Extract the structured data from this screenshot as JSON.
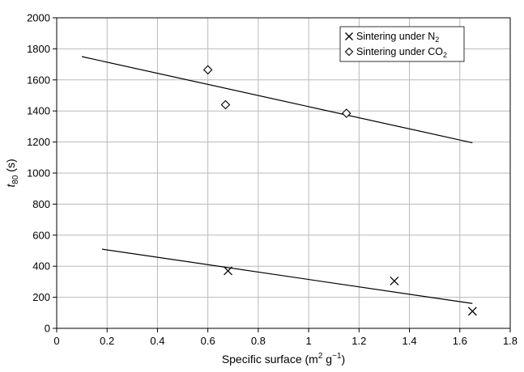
{
  "chart_data": {
    "type": "scatter",
    "title": "",
    "xlabel": {
      "text": "Specific surface (m",
      "sup1": "2",
      "mid": " g",
      "sup2": "−1",
      "end": ")"
    },
    "ylabel": {
      "main": "t",
      "sub": "80",
      "rest": " (s)"
    },
    "xlim": [
      0,
      1.8
    ],
    "ylim": [
      0,
      2000
    ],
    "xticks": [
      {
        "value": 0,
        "label": "0"
      },
      {
        "value": 0.2,
        "label": "0.2"
      },
      {
        "value": 0.4,
        "label": "0.4"
      },
      {
        "value": 0.6,
        "label": "0.6"
      },
      {
        "value": 0.8,
        "label": "0.8"
      },
      {
        "value": 1.0,
        "label": "1"
      },
      {
        "value": 1.2,
        "label": "1.2"
      },
      {
        "value": 1.4,
        "label": "1.4"
      },
      {
        "value": 1.6,
        "label": "1.6"
      },
      {
        "value": 1.8,
        "label": "1.8"
      }
    ],
    "yticks": [
      {
        "value": 0,
        "label": "0"
      },
      {
        "value": 200,
        "label": "200"
      },
      {
        "value": 400,
        "label": "400"
      },
      {
        "value": 600,
        "label": "600"
      },
      {
        "value": 800,
        "label": "800"
      },
      {
        "value": 1000,
        "label": "1000"
      },
      {
        "value": 1200,
        "label": "1200"
      },
      {
        "value": 1400,
        "label": "1400"
      },
      {
        "value": 1600,
        "label": "1600"
      },
      {
        "value": 1800,
        "label": "1800"
      },
      {
        "value": 2000,
        "label": "2000"
      }
    ],
    "grid": true,
    "legend_position": "top-right",
    "series": [
      {
        "id": "n2",
        "legend_main": "Sintering under N",
        "legend_sub": "2",
        "marker": "cross",
        "points": [
          {
            "x": 0.68,
            "y": 370
          },
          {
            "x": 1.34,
            "y": 305
          },
          {
            "x": 1.65,
            "y": 110
          }
        ],
        "trendline": [
          {
            "x": 0.18,
            "y": 510
          },
          {
            "x": 1.65,
            "y": 160
          }
        ]
      },
      {
        "id": "co2",
        "legend_main": "Sintering under CO",
        "legend_sub": "2",
        "marker": "diamond",
        "points": [
          {
            "x": 0.6,
            "y": 1665
          },
          {
            "x": 0.67,
            "y": 1440
          },
          {
            "x": 1.15,
            "y": 1385
          }
        ],
        "trendline": [
          {
            "x": 0.1,
            "y": 1750
          },
          {
            "x": 1.65,
            "y": 1195
          }
        ]
      }
    ],
    "colors": {
      "grid": "#b9b9b9",
      "axis": "#000000",
      "marks": "#000000",
      "background": "#ffffff"
    }
  }
}
